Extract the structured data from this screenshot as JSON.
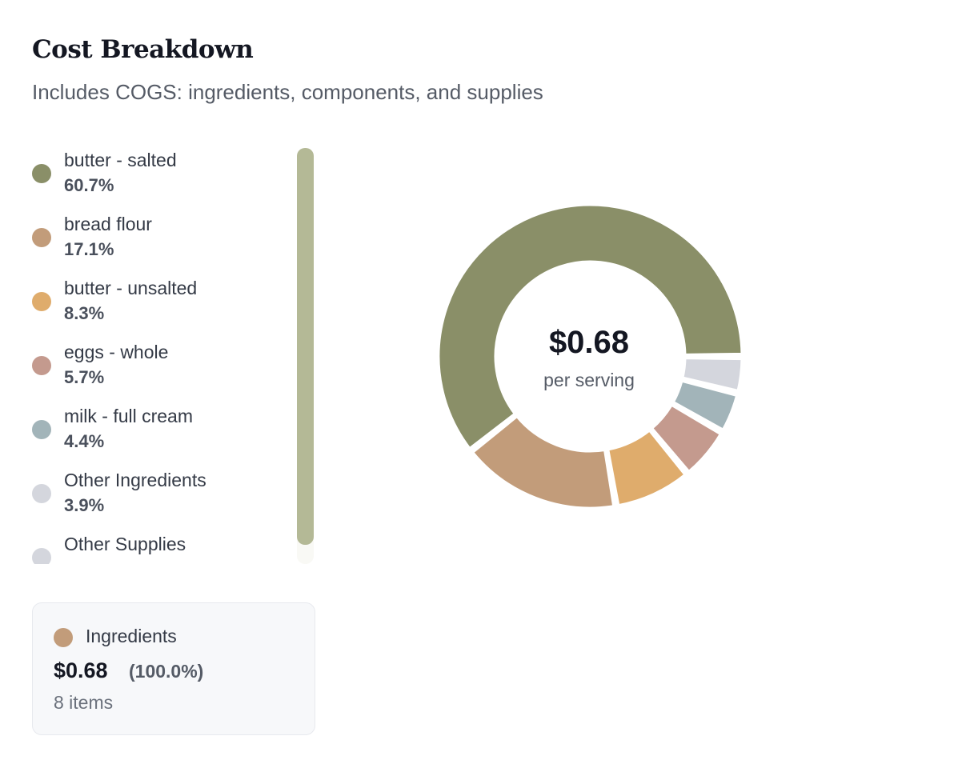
{
  "header": {
    "title": "Cost Breakdown",
    "subtitle": "Includes COGS: ingredients, components, and supplies"
  },
  "chart_data": {
    "type": "pie",
    "variant": "donut",
    "center_value": "$0.68",
    "center_label": "per serving",
    "slices": [
      {
        "name": "butter - salted",
        "percent_label": "60.7%",
        "value": 60.7,
        "color": "#8a8f68"
      },
      {
        "name": "bread flour",
        "percent_label": "17.1%",
        "value": 17.1,
        "color": "#c29c7a"
      },
      {
        "name": "butter - unsalted",
        "percent_label": "8.3%",
        "value": 8.3,
        "color": "#dfac6c"
      },
      {
        "name": "eggs - whole",
        "percent_label": "5.7%",
        "value": 5.7,
        "color": "#c49a8e"
      },
      {
        "name": "milk - full cream",
        "percent_label": "4.4%",
        "value": 4.4,
        "color": "#a2b4b9"
      },
      {
        "name": "Other Ingredients",
        "percent_label": "3.9%",
        "value": 3.9,
        "color": "#d4d6dd"
      },
      {
        "name": "Other Supplies",
        "percent_label": "",
        "value": 0,
        "color": "#d4d6dd"
      }
    ],
    "start_direction": "right",
    "direction": "counterclockwise",
    "legend_position": "left"
  },
  "summary": {
    "label": "Ingredients",
    "amount": "$0.68",
    "percent": "(100.0%)",
    "items": "8 items",
    "dot_color": "#c29c7a"
  },
  "scrollbar": {
    "thumb_color": "#b4b996"
  }
}
